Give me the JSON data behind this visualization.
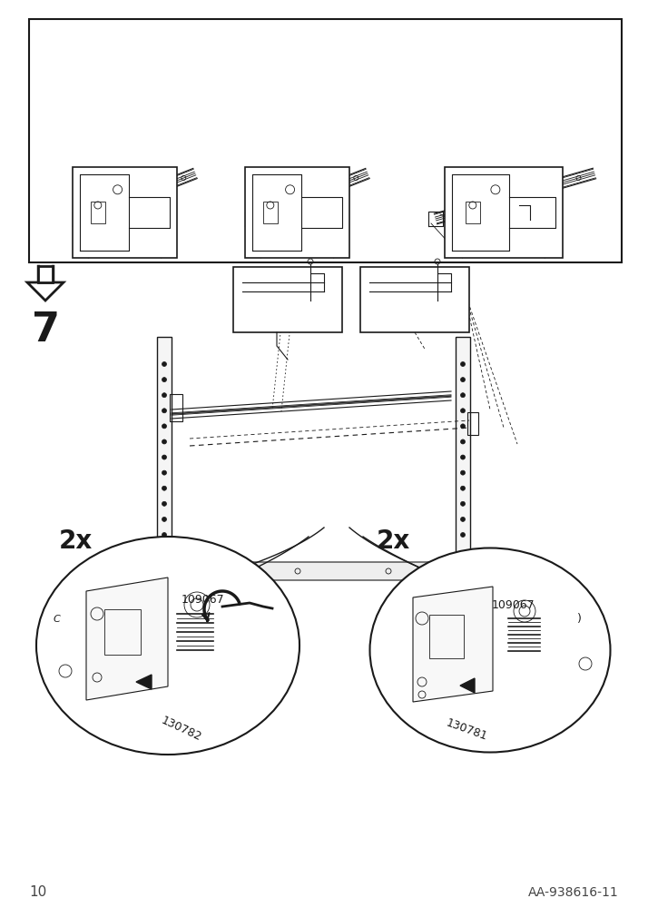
{
  "page_number": "10",
  "article_number": "AA-938616-11",
  "step_number": "7",
  "bg_color": "#ffffff",
  "line_color": "#1a1a1a",
  "part_number_1": "109067",
  "part_number_2": "130782",
  "part_number_3": "130781",
  "quantity_label": "2x",
  "font_size_step": 32,
  "font_size_page": 11,
  "font_size_article": 10,
  "font_size_qty": 20,
  "font_size_part": 9
}
